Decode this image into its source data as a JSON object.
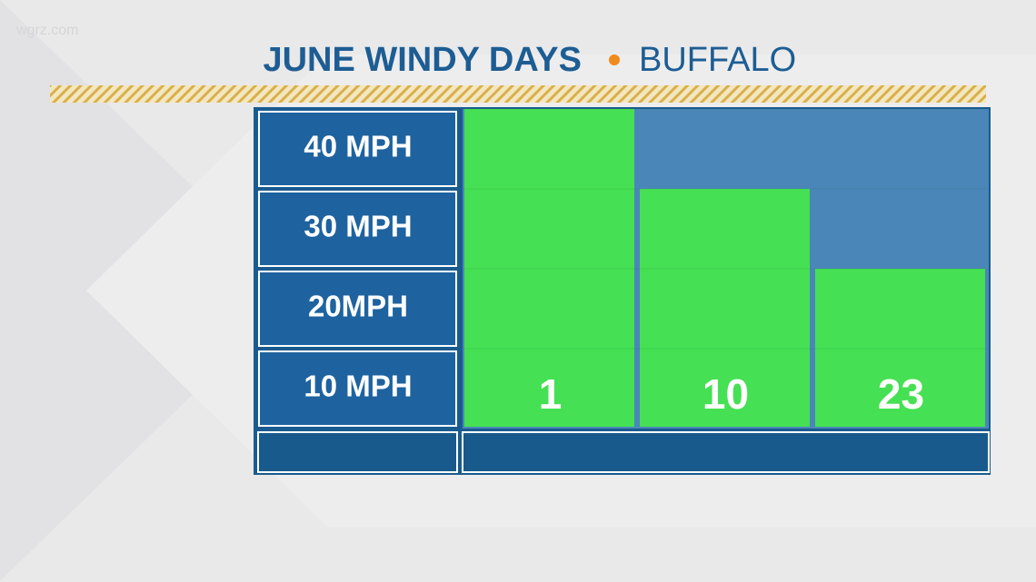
{
  "watermark": "wgrz.com",
  "chart_data": {
    "type": "bar",
    "title": "JUNE WINDY DAYS",
    "subtitle": "BUFFALO",
    "values": [
      40,
      30,
      20
    ],
    "days": [
      1,
      10,
      23
    ],
    "color": "#45e053",
    "ylim": [
      0,
      40
    ],
    "yticks": [
      {
        "value": 40,
        "label": "40 MPH"
      },
      {
        "value": 30,
        "label": "30 MPH"
      },
      {
        "value": 20,
        "label": "20MPH"
      },
      {
        "value": 10,
        "label": "10 MPH"
      }
    ],
    "grid": true
  }
}
